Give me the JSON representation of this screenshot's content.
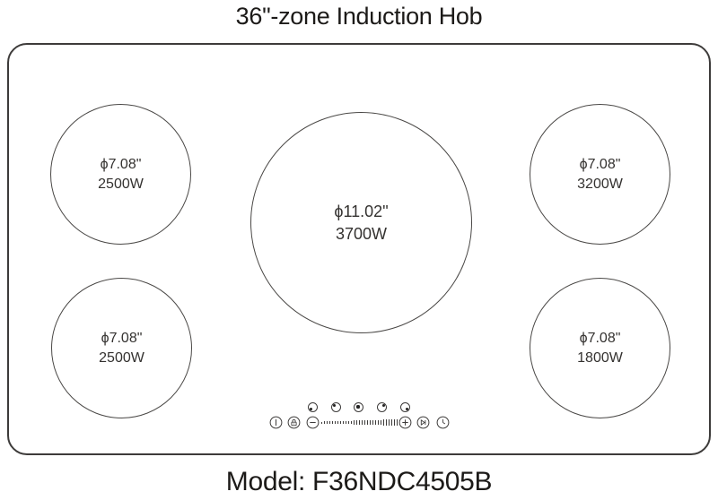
{
  "title": "36\"-zone Induction Hob",
  "model": "Model: F36NDC4505B",
  "colors": {
    "line": "#3d3b3a",
    "zone_text": "#343230",
    "heading_text": "#1c1a18",
    "background": "#ffffff"
  },
  "zones": [
    {
      "position": "top-left",
      "diameter": "ϕ7.08\"",
      "power": "2500W"
    },
    {
      "position": "top-right",
      "diameter": "ϕ7.08\"",
      "power": "3200W"
    },
    {
      "position": "center",
      "diameter": "ϕ11.02\"",
      "power": "3700W"
    },
    {
      "position": "bottom-left",
      "diameter": "ϕ7.08\"",
      "power": "2500W"
    },
    {
      "position": "bottom-right",
      "diameter": "ϕ7.08\"",
      "power": "1800W"
    }
  ],
  "control_panel": {
    "zone_selectors": [
      {
        "icon": "zone-dot-bottom-left"
      },
      {
        "icon": "zone-dot-top-left"
      },
      {
        "icon": "zone-dot-center"
      },
      {
        "icon": "zone-dot-top-right"
      },
      {
        "icon": "zone-dot-bottom-right"
      }
    ],
    "buttons": [
      {
        "icon": "power-icon"
      },
      {
        "icon": "child-lock-icon"
      },
      {
        "icon": "minus-icon"
      },
      {
        "icon": "plus-icon"
      },
      {
        "icon": "boost-icon"
      },
      {
        "icon": "timer-icon"
      }
    ],
    "slider": {
      "icon": "power-level-ticks",
      "tick_count": 29
    }
  }
}
